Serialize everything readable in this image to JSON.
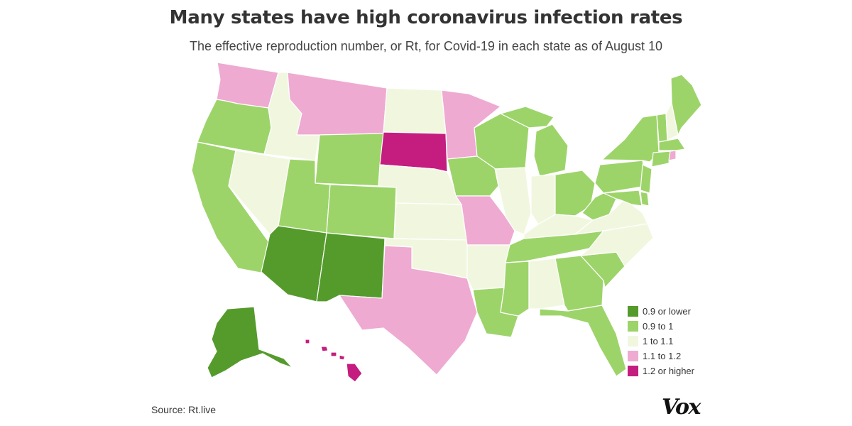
{
  "title": "Many states have high coronavirus infection rates",
  "subtitle": "The effective reproduction number, or Rt, for Covid-19 in each state as of August 10",
  "source": "Source: Rt.live",
  "logo": "Vox",
  "colors": {
    "c1": "#559b2c",
    "c2": "#9dd46a",
    "c3": "#f1f7df",
    "c4": "#eeaad1",
    "c5": "#c41d7f"
  },
  "legend": [
    {
      "label": "0.9 or lower",
      "category": "c1"
    },
    {
      "label": "0.9 to 1",
      "category": "c2"
    },
    {
      "label": "1 to 1.1",
      "category": "c3"
    },
    {
      "label": "1.1 to 1.2",
      "category": "c4"
    },
    {
      "label": "1.2 or higher",
      "category": "c5"
    }
  ],
  "state_categories": {
    "AK": "c1",
    "AL": "c3",
    "AR": "c3",
    "AZ": "c1",
    "CA": "c2",
    "CO": "c2",
    "CT": "c2",
    "DE": "c2",
    "FL": "c2",
    "GA": "c2",
    "HI": "c5",
    "IA": "c2",
    "ID": "c3",
    "IL": "c3",
    "IN": "c3",
    "KS": "c3",
    "KY": "c3",
    "LA": "c2",
    "MA": "c2",
    "MD": "c2",
    "ME": "c2",
    "MI": "c2",
    "MN": "c4",
    "MO": "c4",
    "MS": "c2",
    "MT": "c4",
    "NC": "c3",
    "ND": "c3",
    "NE": "c3",
    "NH": "c3",
    "NJ": "c2",
    "NM": "c1",
    "NV": "c3",
    "NY": "c2",
    "OH": "c2",
    "OK": "c3",
    "OR": "c2",
    "PA": "c2",
    "RI": "c4",
    "SC": "c2",
    "SD": "c5",
    "TN": "c2",
    "TX": "c4",
    "UT": "c2",
    "VA": "c3",
    "VT": "c2",
    "WA": "c4",
    "WI": "c2",
    "WV": "c2",
    "WY": "c2"
  }
}
